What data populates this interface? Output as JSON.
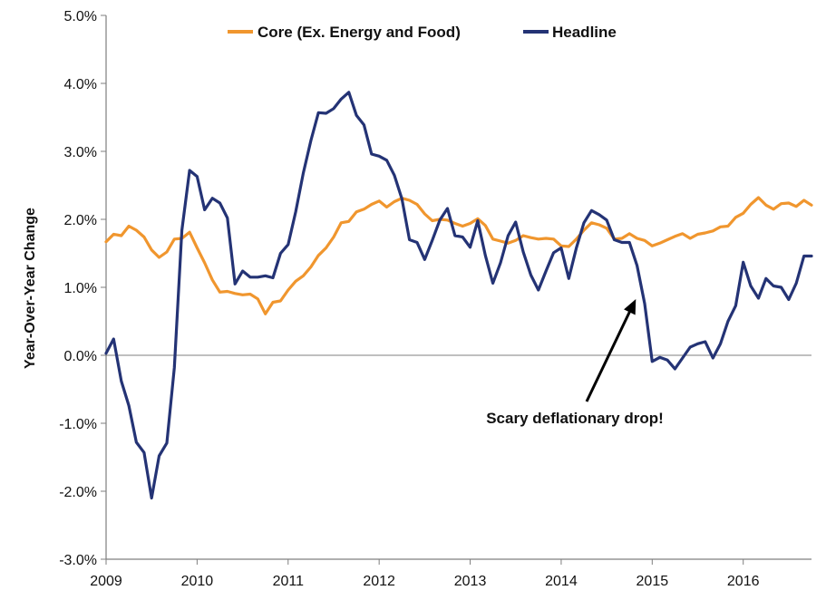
{
  "chart_data": {
    "type": "line",
    "title": "",
    "xlabel": "",
    "ylabel": "Year-Over-Year Change",
    "x_range": [
      2009.0,
      2016.75
    ],
    "ylim": [
      -3.0,
      5.0
    ],
    "x_ticks": [
      2009,
      2010,
      2011,
      2012,
      2013,
      2014,
      2015,
      2016
    ],
    "x_tick_labels": [
      "2009",
      "2010",
      "2011",
      "2012",
      "2013",
      "2014",
      "2015",
      "2016"
    ],
    "y_ticks": [
      -3,
      -2,
      -1,
      0,
      1,
      2,
      3,
      4,
      5
    ],
    "y_tick_labels": [
      "-3.0%",
      "-2.0%",
      "-1.0%",
      "0.0%",
      "1.0%",
      "2.0%",
      "3.0%",
      "4.0%",
      "5.0%"
    ],
    "grid": false,
    "legend_position": "top",
    "annotation": {
      "text": "Scary deflationary drop!",
      "arrow_to": [
        2014.92,
        0.8
      ]
    },
    "series": [
      {
        "name": "Core (Ex. Energy and Food)",
        "color": "#F0962E",
        "x": [
          2009.0,
          2009.083,
          2009.167,
          2009.25,
          2009.333,
          2009.417,
          2009.5,
          2009.583,
          2009.667,
          2009.75,
          2009.833,
          2009.917,
          2010.0,
          2010.083,
          2010.167,
          2010.25,
          2010.333,
          2010.417,
          2010.5,
          2010.583,
          2010.667,
          2010.75,
          2010.833,
          2010.917,
          2011.0,
          2011.083,
          2011.167,
          2011.25,
          2011.333,
          2011.417,
          2011.5,
          2011.583,
          2011.667,
          2011.75,
          2011.833,
          2011.917,
          2012.0,
          2012.083,
          2012.167,
          2012.25,
          2012.333,
          2012.417,
          2012.5,
          2012.583,
          2012.667,
          2012.75,
          2012.833,
          2012.917,
          2013.0,
          2013.083,
          2013.167,
          2013.25,
          2013.333,
          2013.417,
          2013.5,
          2013.583,
          2013.667,
          2013.75,
          2013.833,
          2013.917,
          2014.0,
          2014.083,
          2014.167,
          2014.25,
          2014.333,
          2014.417,
          2014.5,
          2014.583,
          2014.667,
          2014.75,
          2014.833,
          2014.917,
          2015.0,
          2015.083,
          2015.167,
          2015.25,
          2015.333,
          2015.417,
          2015.5,
          2015.583,
          2015.667,
          2015.75,
          2015.833,
          2015.917,
          2016.0,
          2016.083,
          2016.167,
          2016.25,
          2016.333,
          2016.417,
          2016.5,
          2016.583,
          2016.667,
          2016.75
        ],
        "values": [
          1.67,
          1.78,
          1.76,
          1.9,
          1.84,
          1.74,
          1.55,
          1.44,
          1.52,
          1.71,
          1.72,
          1.81,
          1.58,
          1.36,
          1.11,
          0.93,
          0.94,
          0.91,
          0.89,
          0.9,
          0.83,
          0.61,
          0.78,
          0.8,
          0.96,
          1.09,
          1.17,
          1.3,
          1.47,
          1.58,
          1.74,
          1.95,
          1.97,
          2.11,
          2.15,
          2.22,
          2.27,
          2.18,
          2.26,
          2.31,
          2.28,
          2.22,
          2.08,
          1.98,
          2.0,
          1.99,
          1.94,
          1.9,
          1.94,
          2.01,
          1.91,
          1.71,
          1.68,
          1.65,
          1.69,
          1.76,
          1.73,
          1.71,
          1.72,
          1.71,
          1.61,
          1.6,
          1.71,
          1.84,
          1.95,
          1.92,
          1.87,
          1.71,
          1.72,
          1.79,
          1.72,
          1.69,
          1.61,
          1.65,
          1.7,
          1.75,
          1.79,
          1.72,
          1.78,
          1.8,
          1.83,
          1.89,
          1.9,
          2.03,
          2.09,
          2.22,
          2.32,
          2.21,
          2.15,
          2.23,
          2.24,
          2.19,
          2.28,
          2.21
        ]
      },
      {
        "name": "Headline",
        "color": "#243375",
        "x": [
          2009.0,
          2009.083,
          2009.167,
          2009.25,
          2009.333,
          2009.417,
          2009.5,
          2009.583,
          2009.667,
          2009.75,
          2009.833,
          2009.917,
          2010.0,
          2010.083,
          2010.167,
          2010.25,
          2010.333,
          2010.417,
          2010.5,
          2010.583,
          2010.667,
          2010.75,
          2010.833,
          2010.917,
          2011.0,
          2011.083,
          2011.167,
          2011.25,
          2011.333,
          2011.417,
          2011.5,
          2011.583,
          2011.667,
          2011.75,
          2011.833,
          2011.917,
          2012.0,
          2012.083,
          2012.167,
          2012.25,
          2012.333,
          2012.417,
          2012.5,
          2012.583,
          2012.667,
          2012.75,
          2012.833,
          2012.917,
          2013.0,
          2013.083,
          2013.167,
          2013.25,
          2013.333,
          2013.417,
          2013.5,
          2013.583,
          2013.667,
          2013.75,
          2013.833,
          2013.917,
          2014.0,
          2014.083,
          2014.167,
          2014.25,
          2014.333,
          2014.417,
          2014.5,
          2014.583,
          2014.667,
          2014.75,
          2014.833,
          2014.917,
          2015.0,
          2015.083,
          2015.167,
          2015.25,
          2015.333,
          2015.417,
          2015.5,
          2015.583,
          2015.667,
          2015.75,
          2015.833,
          2015.917,
          2016.0,
          2016.083,
          2016.167,
          2016.25,
          2016.333,
          2016.417,
          2016.5,
          2016.583,
          2016.667,
          2016.75
        ],
        "values": [
          0.03,
          0.24,
          -0.38,
          -0.74,
          -1.28,
          -1.43,
          -2.1,
          -1.48,
          -1.29,
          -0.18,
          1.84,
          2.72,
          2.63,
          2.14,
          2.31,
          2.24,
          2.02,
          1.05,
          1.24,
          1.15,
          1.15,
          1.17,
          1.14,
          1.5,
          1.63,
          2.11,
          2.68,
          3.16,
          3.57,
          3.56,
          3.63,
          3.77,
          3.87,
          3.53,
          3.39,
          2.96,
          2.93,
          2.87,
          2.65,
          2.3,
          1.7,
          1.66,
          1.41,
          1.69,
          1.99,
          2.16,
          1.76,
          1.74,
          1.59,
          1.98,
          1.47,
          1.06,
          1.36,
          1.76,
          1.96,
          1.52,
          1.18,
          0.96,
          1.24,
          1.51,
          1.58,
          1.13,
          1.58,
          1.95,
          2.13,
          2.07,
          1.99,
          1.7,
          1.66,
          1.66,
          1.32,
          0.76,
          -0.09,
          -0.03,
          -0.07,
          -0.2,
          -0.04,
          0.12,
          0.17,
          0.2,
          -0.04,
          0.17,
          0.5,
          0.73,
          1.37,
          1.02,
          0.84,
          1.13,
          1.02,
          1.0,
          0.82,
          1.06,
          1.46,
          1.46
        ]
      }
    ]
  }
}
